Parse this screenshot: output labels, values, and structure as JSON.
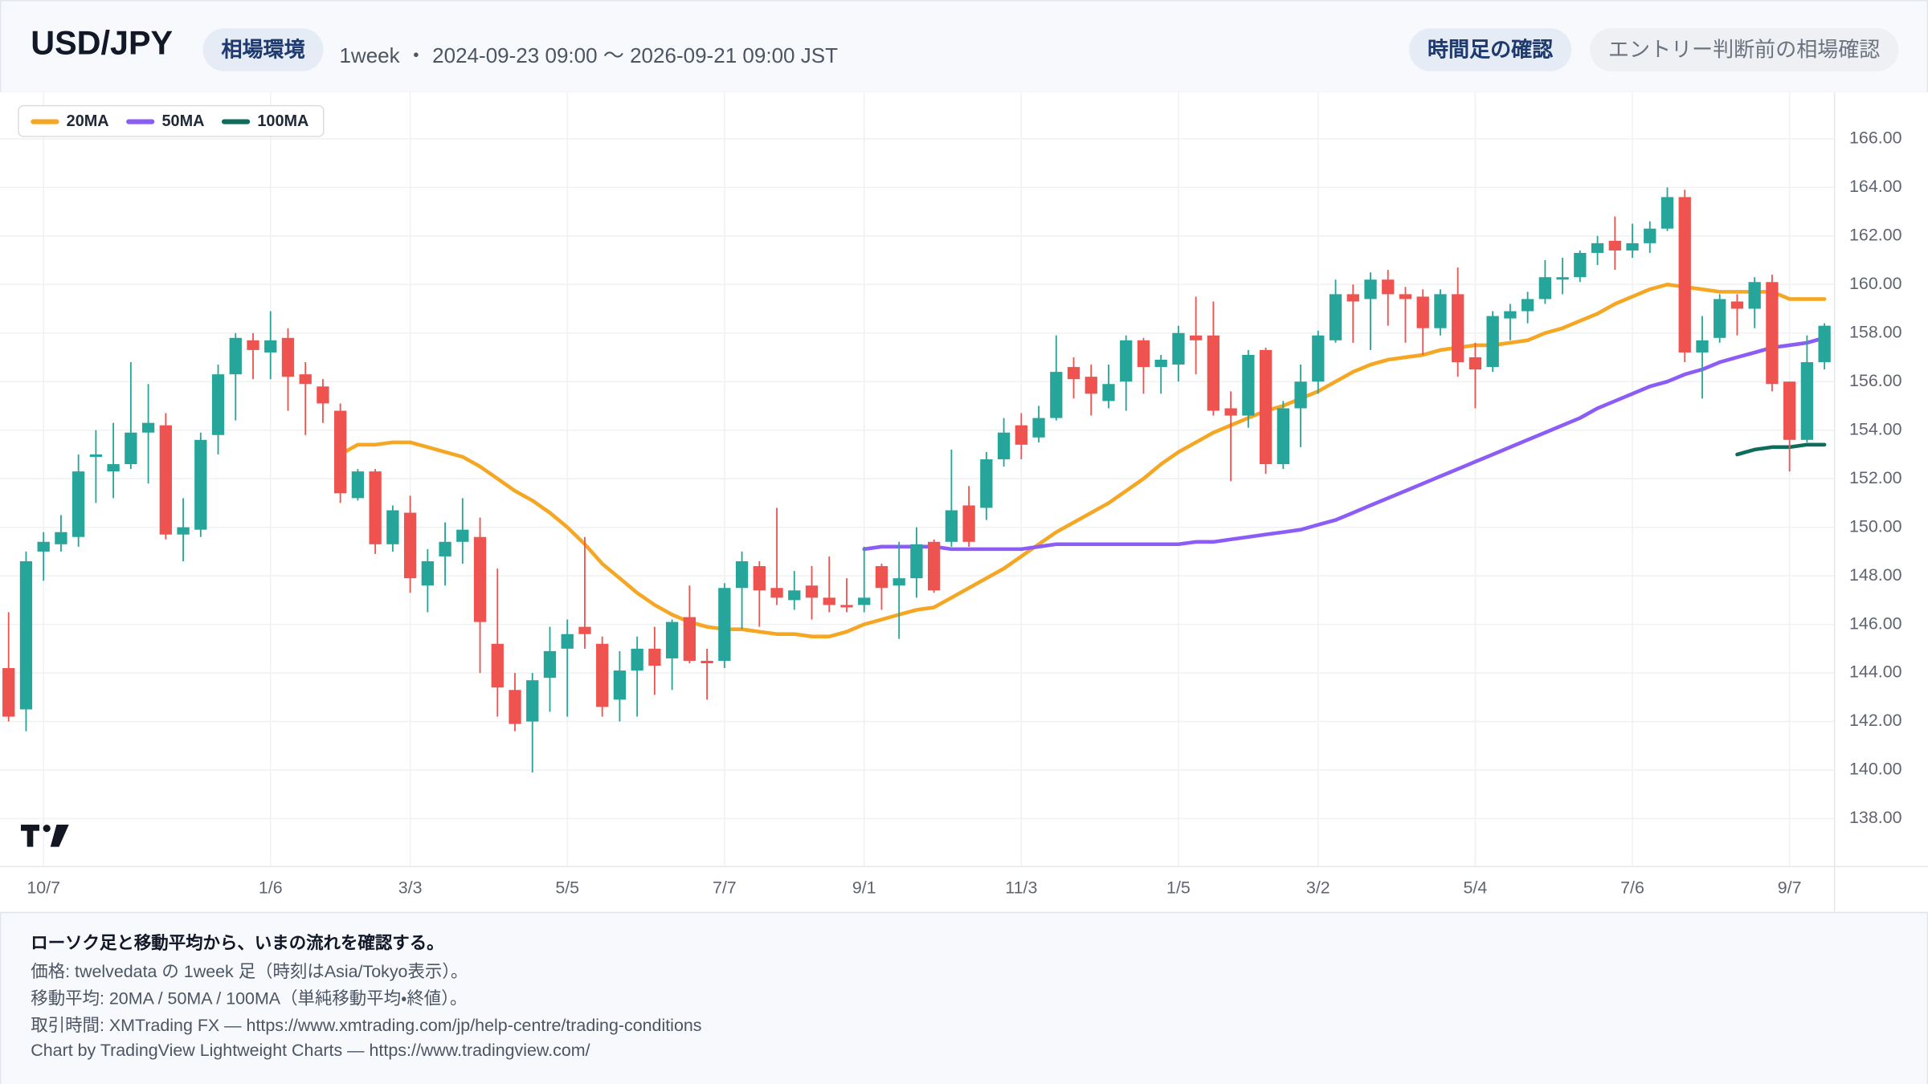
{
  "header": {
    "symbol": "USD/JPY",
    "tag": "相場環境",
    "meta": "1week ・ 2024-09-23 09:00 〜 2026-09-21 09:00 JST",
    "buttons": [
      "時間足の確認",
      "エントリー判断前の相場確認"
    ]
  },
  "footer": {
    "heading": "ローソク足と移動平均から、いまの流れを確認する。",
    "lines": [
      "価格: twelvedata の 1week 足（時刻はAsia/Tokyo表示）。",
      "移動平均: 20MA / 50MA / 100MA（単純移動平均・終値）。",
      "取引時間: XMTrading FX — https://www.xmtrading.com/jp/help-centre/trading-conditions",
      "Chart by TradingView Lightweight Charts — https://www.tradingview.com/"
    ]
  },
  "chart_data": {
    "type": "candlestick",
    "legend": "top-left",
    "grid": true,
    "up_color": "#26a69a",
    "down_color": "#ef5350",
    "ylim": [
      136.03,
      167.92
    ],
    "yticks": [
      {
        "value": 138,
        "label": "138.00"
      },
      {
        "value": 140,
        "label": "140.00"
      },
      {
        "value": 142,
        "label": "142.00"
      },
      {
        "value": 144,
        "label": "144.00"
      },
      {
        "value": 146,
        "label": "146.00"
      },
      {
        "value": 148,
        "label": "148.00"
      },
      {
        "value": 150,
        "label": "150.00"
      },
      {
        "value": 152,
        "label": "152.00"
      },
      {
        "value": 154,
        "label": "154.00"
      },
      {
        "value": 156,
        "label": "156.00"
      },
      {
        "value": 158,
        "label": "158.00"
      },
      {
        "value": 160,
        "label": "160.00"
      },
      {
        "value": 162,
        "label": "162.00"
      },
      {
        "value": 164,
        "label": "164.00"
      },
      {
        "value": 166,
        "label": "166.00"
      }
    ],
    "categories": [
      null,
      null,
      "10/7",
      null,
      null,
      null,
      null,
      null,
      null,
      null,
      null,
      null,
      null,
      null,
      null,
      "1/6",
      null,
      null,
      null,
      null,
      null,
      null,
      null,
      "3/3",
      null,
      null,
      null,
      null,
      null,
      null,
      null,
      null,
      "5/5",
      null,
      null,
      null,
      null,
      null,
      null,
      null,
      null,
      "7/7",
      null,
      null,
      null,
      null,
      null,
      null,
      null,
      "9/1",
      null,
      null,
      null,
      null,
      null,
      null,
      null,
      null,
      "11/3",
      null,
      null,
      null,
      null,
      null,
      null,
      null,
      null,
      "1/5",
      null,
      null,
      null,
      null,
      null,
      null,
      null,
      "3/2",
      null,
      null,
      null,
      null,
      null,
      null,
      null,
      null,
      "5/4",
      null,
      null,
      null,
      null,
      null,
      null,
      null,
      null,
      "7/6",
      null,
      null,
      null,
      null,
      null,
      null,
      null,
      null,
      "9/7",
      null,
      null
    ],
    "open": [
      144.2,
      142.5,
      149.0,
      149.3,
      149.6,
      152.9,
      152.3,
      152.6,
      153.9,
      154.2,
      149.7,
      149.9,
      153.8,
      156.3,
      157.7,
      157.2,
      157.8,
      156.3,
      155.8,
      154.8,
      151.2,
      152.3,
      149.3,
      150.6,
      147.6,
      148.8,
      149.4,
      149.6,
      145.2,
      143.3,
      142.0,
      143.8,
      145.0,
      145.9,
      145.2,
      142.9,
      144.1,
      145.0,
      144.6,
      146.3,
      144.5,
      144.5,
      147.5,
      148.4,
      147.5,
      147.0,
      147.6,
      147.1,
      146.8,
      146.8,
      148.4,
      147.6,
      147.9,
      149.4,
      149.4,
      150.9,
      150.8,
      152.8,
      154.2,
      153.7,
      154.5,
      156.6,
      156.2,
      155.2,
      156.0,
      157.7,
      156.6,
      156.7,
      157.9,
      157.9,
      154.9,
      154.6,
      157.3,
      152.6,
      154.9,
      156.0,
      157.7,
      159.6,
      159.4,
      160.2,
      159.6,
      159.5,
      158.2,
      159.6,
      157.0,
      156.6,
      158.6,
      158.9,
      159.4,
      160.2,
      160.3,
      161.3,
      161.8,
      161.4,
      161.7,
      162.3,
      163.6,
      157.2,
      157.8,
      159.3,
      159.0,
      160.1,
      156.0,
      153.6,
      156.8
    ],
    "high": [
      146.5,
      149.0,
      149.8,
      150.5,
      153.0,
      154.0,
      154.3,
      156.8,
      155.9,
      154.7,
      151.2,
      153.9,
      156.7,
      158.0,
      158.0,
      158.9,
      158.2,
      156.8,
      156.1,
      155.1,
      152.4,
      152.4,
      150.9,
      151.3,
      149.1,
      150.2,
      151.2,
      150.4,
      148.3,
      144.0,
      144.0,
      145.9,
      146.2,
      149.6,
      145.5,
      144.9,
      145.5,
      145.9,
      146.2,
      147.6,
      145.0,
      147.7,
      149.0,
      148.6,
      150.8,
      148.2,
      148.4,
      148.8,
      147.9,
      149.2,
      148.5,
      149.4,
      150.0,
      149.5,
      153.2,
      151.7,
      153.1,
      154.5,
      154.7,
      155.0,
      157.9,
      157.0,
      156.7,
      156.7,
      157.9,
      157.8,
      157.1,
      158.3,
      159.5,
      159.3,
      155.6,
      157.3,
      157.4,
      155.2,
      156.7,
      158.1,
      160.2,
      160.0,
      160.5,
      160.6,
      159.9,
      159.8,
      159.8,
      160.7,
      157.6,
      158.9,
      159.2,
      159.7,
      161.0,
      161.1,
      161.4,
      162.0,
      162.8,
      162.5,
      162.6,
      164.0,
      163.9,
      158.7,
      159.6,
      159.6,
      160.3,
      160.4,
      156.0,
      157.9,
      158.4
    ],
    "low": [
      142.0,
      141.6,
      147.8,
      149.0,
      149.2,
      151.0,
      151.2,
      152.4,
      151.8,
      149.5,
      148.6,
      149.6,
      153.0,
      154.4,
      156.1,
      156.1,
      154.8,
      153.8,
      154.3,
      151.0,
      151.1,
      148.9,
      149.0,
      147.3,
      146.5,
      147.6,
      148.5,
      144.0,
      142.2,
      141.6,
      139.9,
      142.4,
      142.2,
      145.0,
      142.2,
      142.0,
      142.2,
      143.1,
      143.3,
      144.4,
      142.9,
      144.2,
      145.8,
      145.9,
      146.8,
      146.6,
      146.2,
      146.5,
      146.5,
      146.5,
      146.6,
      145.4,
      147.1,
      147.3,
      149.2,
      149.2,
      150.3,
      152.5,
      152.8,
      153.5,
      154.4,
      155.3,
      154.6,
      154.9,
      154.8,
      155.5,
      155.5,
      156.0,
      156.3,
      154.6,
      151.9,
      154.1,
      152.2,
      152.4,
      153.3,
      155.5,
      157.6,
      157.6,
      157.3,
      158.3,
      157.6,
      157.1,
      157.9,
      156.2,
      154.9,
      156.4,
      157.7,
      158.4,
      159.2,
      159.6,
      160.1,
      160.8,
      160.6,
      161.1,
      161.3,
      162.2,
      156.8,
      155.3,
      157.6,
      157.9,
      158.2,
      155.6,
      152.3,
      153.5,
      156.5
    ],
    "close": [
      142.2,
      148.6,
      149.4,
      149.8,
      152.3,
      153.0,
      152.6,
      153.9,
      154.3,
      149.7,
      150.0,
      153.6,
      156.3,
      157.8,
      157.3,
      157.7,
      156.2,
      155.9,
      155.1,
      151.4,
      152.3,
      149.3,
      150.7,
      147.9,
      148.6,
      149.4,
      149.9,
      146.1,
      143.4,
      141.9,
      143.7,
      144.9,
      145.6,
      145.6,
      142.6,
      144.1,
      145.0,
      144.3,
      146.1,
      144.5,
      144.4,
      147.5,
      148.6,
      147.4,
      147.1,
      147.4,
      147.1,
      146.8,
      146.7,
      147.1,
      147.5,
      147.9,
      149.3,
      147.4,
      150.7,
      149.4,
      152.8,
      153.9,
      153.4,
      154.5,
      156.4,
      156.1,
      155.5,
      155.9,
      157.7,
      156.6,
      156.9,
      158.0,
      157.7,
      154.8,
      154.6,
      157.1,
      152.6,
      154.9,
      156.0,
      157.9,
      159.6,
      159.3,
      160.2,
      159.6,
      159.4,
      158.2,
      159.6,
      156.8,
      156.5,
      158.7,
      158.9,
      159.4,
      160.3,
      160.3,
      161.3,
      161.7,
      161.4,
      161.7,
      162.3,
      163.6,
      157.2,
      157.7,
      159.4,
      159.0,
      160.1,
      155.9,
      153.6,
      156.8,
      158.3
    ],
    "series": [
      {
        "name": "20MA",
        "color": "#f5a623",
        "values": [
          null,
          null,
          null,
          null,
          null,
          null,
          null,
          null,
          null,
          null,
          null,
          null,
          null,
          null,
          null,
          null,
          null,
          null,
          null,
          153.0,
          153.4,
          153.4,
          153.5,
          153.5,
          153.3,
          153.1,
          152.9,
          152.5,
          152.0,
          151.5,
          151.1,
          150.6,
          150.0,
          149.3,
          148.5,
          147.9,
          147.3,
          146.8,
          146.4,
          146.1,
          145.9,
          145.8,
          145.8,
          145.7,
          145.6,
          145.6,
          145.5,
          145.5,
          145.7,
          146.0,
          146.2,
          146.4,
          146.6,
          146.7,
          147.1,
          147.5,
          147.9,
          148.3,
          148.8,
          149.3,
          149.8,
          150.2,
          150.6,
          151.0,
          151.5,
          152.0,
          152.6,
          153.1,
          153.5,
          153.9,
          154.2,
          154.5,
          154.8,
          155.0,
          155.3,
          155.6,
          156.0,
          156.4,
          156.7,
          156.9,
          157.0,
          157.1,
          157.3,
          157.4,
          157.5,
          157.5,
          157.6,
          157.7,
          158.0,
          158.2,
          158.5,
          158.8,
          159.2,
          159.5,
          159.8,
          160.0,
          159.9,
          159.8,
          159.7,
          159.7,
          159.7,
          159.7,
          159.4,
          159.4,
          159.4
        ]
      },
      {
        "name": "50MA",
        "color": "#8b5cf6",
        "values": [
          null,
          null,
          null,
          null,
          null,
          null,
          null,
          null,
          null,
          null,
          null,
          null,
          null,
          null,
          null,
          null,
          null,
          null,
          null,
          null,
          null,
          null,
          null,
          null,
          null,
          null,
          null,
          null,
          null,
          null,
          null,
          null,
          null,
          null,
          null,
          null,
          null,
          null,
          null,
          null,
          null,
          null,
          null,
          null,
          null,
          null,
          null,
          null,
          null,
          149.1,
          149.2,
          149.2,
          149.2,
          149.2,
          149.1,
          149.1,
          149.1,
          149.1,
          149.1,
          149.2,
          149.3,
          149.3,
          149.3,
          149.3,
          149.3,
          149.3,
          149.3,
          149.3,
          149.4,
          149.4,
          149.5,
          149.6,
          149.7,
          149.8,
          149.9,
          150.1,
          150.3,
          150.6,
          150.9,
          151.2,
          151.5,
          151.8,
          152.1,
          152.4,
          152.7,
          153.0,
          153.3,
          153.6,
          153.9,
          154.2,
          154.5,
          154.9,
          155.2,
          155.5,
          155.8,
          156.0,
          156.3,
          156.5,
          156.8,
          157.0,
          157.2,
          157.4,
          157.5,
          157.6,
          157.8
        ]
      },
      {
        "name": "100MA",
        "color": "#0f6b5a",
        "values": [
          null,
          null,
          null,
          null,
          null,
          null,
          null,
          null,
          null,
          null,
          null,
          null,
          null,
          null,
          null,
          null,
          null,
          null,
          null,
          null,
          null,
          null,
          null,
          null,
          null,
          null,
          null,
          null,
          null,
          null,
          null,
          null,
          null,
          null,
          null,
          null,
          null,
          null,
          null,
          null,
          null,
          null,
          null,
          null,
          null,
          null,
          null,
          null,
          null,
          null,
          null,
          null,
          null,
          null,
          null,
          null,
          null,
          null,
          null,
          null,
          null,
          null,
          null,
          null,
          null,
          null,
          null,
          null,
          null,
          null,
          null,
          null,
          null,
          null,
          null,
          null,
          null,
          null,
          null,
          null,
          null,
          null,
          null,
          null,
          null,
          null,
          null,
          null,
          null,
          null,
          null,
          null,
          null,
          null,
          null,
          null,
          null,
          null,
          null,
          153.0,
          153.2,
          153.3,
          153.3,
          153.4,
          153.4
        ]
      }
    ]
  }
}
